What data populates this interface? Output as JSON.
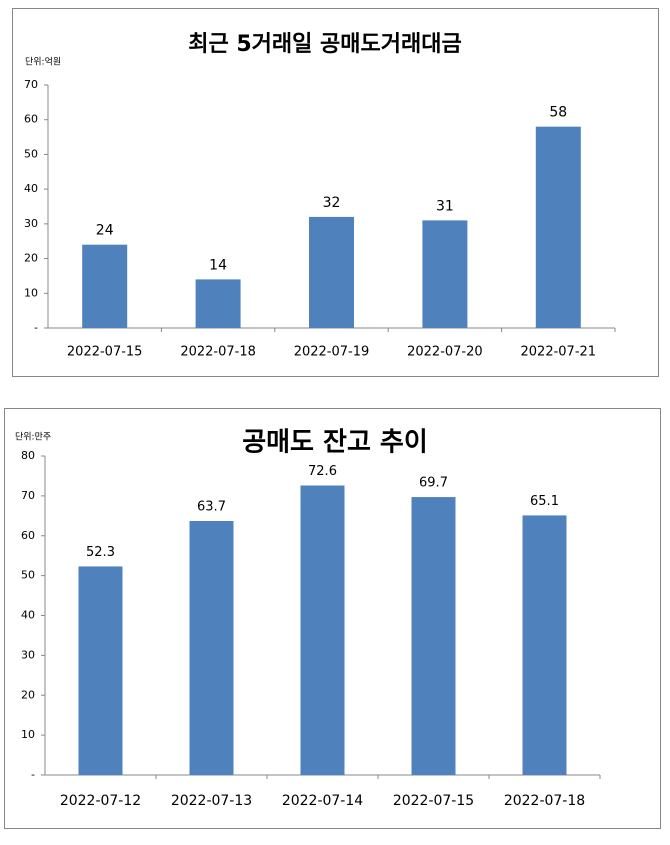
{
  "chart_data": [
    {
      "type": "bar",
      "title": "최근 5거래일 공매도거래대금",
      "unit": "단위:억원",
      "categories": [
        "2022-07-15",
        "2022-07-18",
        "2022-07-19",
        "2022-07-20",
        "2022-07-21"
      ],
      "values": [
        24,
        14,
        32,
        31,
        58
      ],
      "color": "#4f81bd",
      "ylim": [
        0,
        70
      ],
      "yticks": [
        {
          "value": 0,
          "label": "-"
        },
        10,
        20,
        30,
        40,
        50,
        60,
        70
      ],
      "grid": false
    },
    {
      "type": "bar",
      "title": "공매도 잔고 추이",
      "unit": "단위:만주",
      "categories": [
        "2022-07-12",
        "2022-07-13",
        "2022-07-14",
        "2022-07-15",
        "2022-07-18"
      ],
      "values": [
        52.3,
        63.7,
        72.6,
        69.7,
        65.1
      ],
      "color": "#4f81bd",
      "ylim": [
        0,
        80
      ],
      "yticks": [
        {
          "value": 0,
          "label": "-"
        },
        10,
        20,
        30,
        40,
        50,
        60,
        70,
        80
      ],
      "grid": false
    }
  ]
}
